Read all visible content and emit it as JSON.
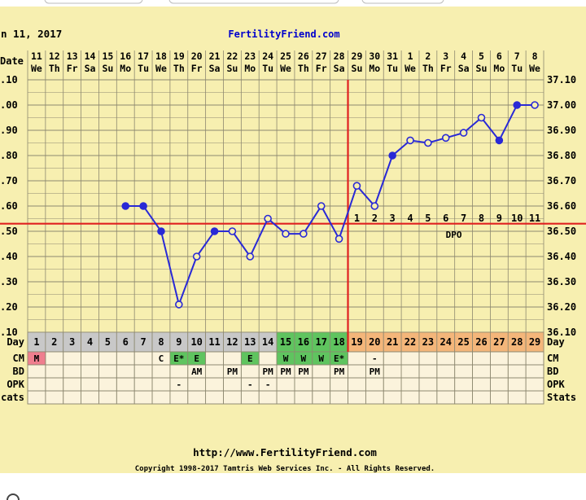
{
  "header": {
    "date_text": "n 11, 2017",
    "site_name": "FertilityFriend.com"
  },
  "labels": {
    "date": "Date",
    "day": "Day",
    "cm": "CM",
    "bd": "BD",
    "opk": "OPK",
    "stats_left": "cats",
    "stats_right": "Stats",
    "dpo": "DPO"
  },
  "left_temp_labels": [
    ".10",
    ".00",
    ".90",
    ".80",
    ".70",
    ".60",
    ".50",
    ".40",
    ".30",
    ".20",
    ".10"
  ],
  "right_temp_labels": [
    "37.10",
    "37.00",
    "36.90",
    "36.80",
    "36.70",
    "36.60",
    "36.50",
    "36.40",
    "36.30",
    "36.20",
    "36.10"
  ],
  "chart_data": {
    "type": "line",
    "ylim": [
      36.1,
      37.1
    ],
    "cycle_days": [
      1,
      2,
      3,
      4,
      5,
      6,
      7,
      8,
      9,
      10,
      11,
      12,
      13,
      14,
      15,
      16,
      17,
      18,
      19,
      20,
      21,
      22,
      23,
      24,
      25,
      26,
      27,
      28,
      29
    ],
    "dates": [
      "11",
      "12",
      "13",
      "14",
      "15",
      "16",
      "17",
      "18",
      "19",
      "20",
      "21",
      "22",
      "23",
      "24",
      "25",
      "26",
      "27",
      "28",
      "29",
      "30",
      "31",
      "1",
      "2",
      "3",
      "4",
      "5",
      "6",
      "7",
      "8"
    ],
    "weekdays": [
      "We",
      "Th",
      "Fr",
      "Sa",
      "Su",
      "Mo",
      "Tu",
      "We",
      "Th",
      "Fr",
      "Sa",
      "Su",
      "Mo",
      "Tu",
      "We",
      "Th",
      "Fr",
      "Sa",
      "Su",
      "Mo",
      "Tu",
      "We",
      "Th",
      "Fr",
      "Sa",
      "Su",
      "Mo",
      "Tu",
      "We"
    ],
    "series": [
      {
        "values": [
          null,
          null,
          null,
          null,
          null,
          36.6,
          36.6,
          36.5,
          36.21,
          36.4,
          36.5,
          36.5,
          36.4,
          36.55,
          36.49,
          36.49,
          36.6,
          36.47,
          36.68,
          36.6,
          36.8,
          36.86,
          36.85,
          36.87,
          36.89,
          36.95,
          36.86,
          37.0,
          37.0
        ],
        "marker": [
          "",
          "",
          "",
          "",
          "",
          "filled",
          "filled",
          "filled",
          "open",
          "open",
          "filled",
          "open",
          "open",
          "open",
          "open",
          "open",
          "open",
          "open",
          "open",
          "open",
          "filled",
          "open",
          "open",
          "open",
          "open",
          "open",
          "filled",
          "filled",
          "open"
        ]
      }
    ],
    "coverline": 36.53,
    "ovulation_day": 18,
    "dpo_numbers": [
      "1",
      "2",
      "3",
      "4",
      "5",
      "6",
      "7",
      "8",
      "9",
      "10",
      "11"
    ],
    "cm": [
      "M",
      "",
      "",
      "",
      "",
      "",
      "",
      "C",
      "E*",
      "E",
      "",
      "",
      "E",
      "",
      "W",
      "W",
      "W",
      "E*",
      "",
      "-",
      "",
      "",
      "",
      "",
      "",
      "",
      "",
      "",
      ""
    ],
    "bd": [
      "",
      "",
      "",
      "",
      "",
      "",
      "",
      "",
      "",
      "AM",
      "",
      "PM",
      "",
      "PM",
      "PM",
      "PM",
      "",
      "PM",
      "",
      "PM",
      "",
      "",
      "",
      "",
      "",
      "",
      "",
      "",
      ""
    ],
    "opk": [
      "",
      "",
      "",
      "",
      "",
      "",
      "",
      "",
      "-",
      "",
      "",
      "",
      "-",
      "-",
      "",
      "",
      "",
      "",
      "",
      "",
      "",
      "",
      "",
      "",
      "",
      "",
      "",
      "",
      ""
    ],
    "stats": [
      "",
      "",
      "",
      "",
      "",
      "",
      "",
      "",
      "",
      "",
      "",
      "",
      "",
      "",
      "",
      "",
      "",
      "",
      "",
      "",
      "",
      "",
      "",
      "",
      "",
      "",
      "",
      "",
      ""
    ]
  },
  "colors": {
    "background": "#f7efb0",
    "grid": "#8d8870",
    "line": "#2929d6",
    "coverline": "#e02020",
    "ovulation_line": "#e02020",
    "day_gray": "#c8c8c8",
    "day_green": "#5fc45f",
    "day_orange": "#f4b67a",
    "cm_menses": "#ef7e8e",
    "cm_green": "#5fc45f",
    "lower_row_bg": "#fbf3dc"
  },
  "footer": {
    "url": "http://www.FertilityFriend.com",
    "copyright": "Copyright 1998-2017 Tamtris Web Services Inc. - All Rights Reserved."
  }
}
